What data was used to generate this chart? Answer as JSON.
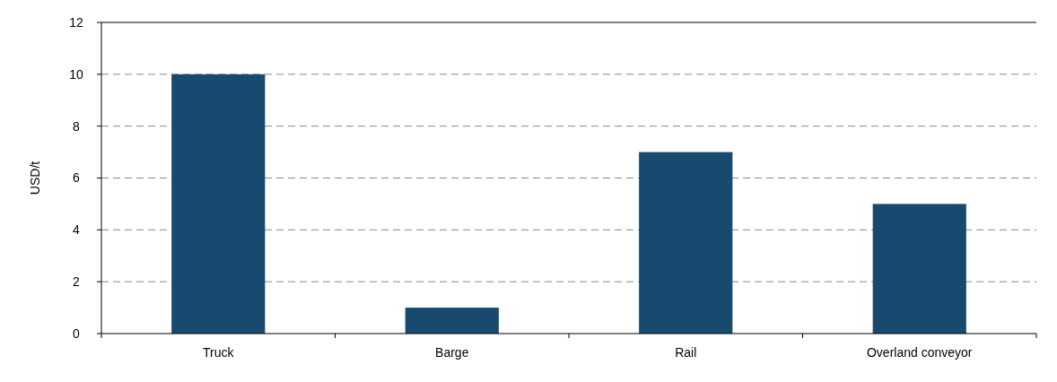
{
  "chart_data": {
    "type": "bar",
    "ylabel": "USD/t",
    "categories": [
      "Truck",
      "Barge",
      "Rail",
      "Overland conveyor"
    ],
    "values": [
      10,
      1,
      7,
      5
    ],
    "color": "#174a6e",
    "ylim": [
      0,
      12
    ],
    "yticks": [
      0,
      2,
      4,
      6,
      8,
      10,
      12
    ],
    "grid": "y"
  }
}
